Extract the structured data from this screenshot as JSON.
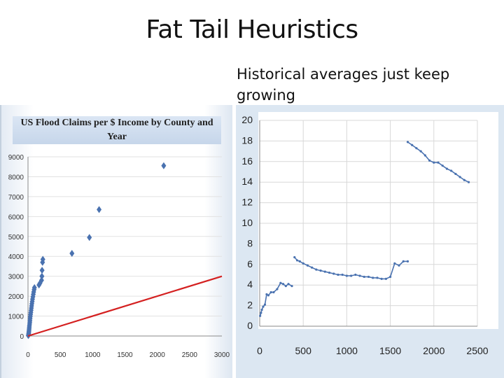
{
  "slide": {
    "title": "Fat Tail Heuristics",
    "subtitle": "Historical averages just keep growing"
  },
  "colors": {
    "marker": "#4a72b0",
    "trend_line": "#d42020",
    "right_panel_bg": "#dce7f2"
  },
  "chart_data": [
    {
      "type": "scatter",
      "title": "US Flood Claims per $ Income by County and Year",
      "xlabel": "",
      "ylabel": "",
      "xlim": [
        0,
        3000
      ],
      "ylim": [
        0,
        9000
      ],
      "xticks": [
        0,
        500,
        1000,
        1500,
        2000,
        2500,
        3000
      ],
      "yticks": [
        0,
        1000,
        2000,
        3000,
        4000,
        5000,
        6000,
        7000,
        8000,
        9000
      ],
      "grid": true,
      "series": [
        {
          "points": [
            [
              5,
              20
            ],
            [
              8,
              60
            ],
            [
              10,
              110
            ],
            [
              12,
              160
            ],
            [
              14,
              220
            ],
            [
              16,
              290
            ],
            [
              18,
              360
            ],
            [
              20,
              440
            ],
            [
              22,
              520
            ],
            [
              25,
              600
            ],
            [
              28,
              690
            ],
            [
              30,
              780
            ],
            [
              33,
              880
            ],
            [
              36,
              980
            ],
            [
              40,
              1080
            ],
            [
              44,
              1180
            ],
            [
              48,
              1290
            ],
            [
              52,
              1400
            ],
            [
              56,
              1510
            ],
            [
              60,
              1620
            ],
            [
              65,
              1730
            ],
            [
              70,
              1850
            ],
            [
              76,
              1970
            ],
            [
              82,
              2090
            ],
            [
              88,
              2210
            ],
            [
              95,
              2330
            ],
            [
              100,
              2430
            ],
            [
              170,
              2560
            ],
            [
              185,
              2650
            ],
            [
              210,
              2800
            ],
            [
              215,
              3000
            ],
            [
              218,
              3300
            ],
            [
              225,
              3700
            ],
            [
              230,
              3850
            ],
            [
              680,
              4150
            ],
            [
              950,
              4950
            ],
            [
              1100,
              6350
            ],
            [
              2100,
              8550
            ]
          ]
        }
      ],
      "trend_line": [
        [
          0,
          0
        ],
        [
          3000,
          3000
        ]
      ]
    },
    {
      "type": "line",
      "xlabel": "",
      "ylabel": "",
      "xlim": [
        0,
        2500
      ],
      "ylim": [
        0,
        20
      ],
      "xticks": [
        0,
        500,
        1000,
        1500,
        2000,
        2500
      ],
      "yticks": [
        0,
        2,
        4,
        6,
        8,
        10,
        12,
        14,
        16,
        18,
        20
      ],
      "grid": true,
      "series": [
        {
          "points": [
            [
              5,
              1.0
            ],
            [
              15,
              1.3
            ],
            [
              25,
              1.6
            ],
            [
              40,
              1.9
            ],
            [
              60,
              2.1
            ],
            [
              80,
              3.1
            ],
            [
              100,
              3.0
            ],
            [
              130,
              3.3
            ],
            [
              160,
              3.3
            ],
            [
              200,
              3.6
            ],
            [
              240,
              4.2
            ],
            [
              270,
              4.1
            ],
            [
              300,
              3.9
            ],
            [
              330,
              4.1
            ],
            [
              370,
              3.9
            ],
            [
              400,
              6.7
            ],
            [
              430,
              6.4
            ],
            [
              460,
              6.3
            ],
            [
              500,
              6.1
            ],
            [
              550,
              5.9
            ],
            [
              600,
              5.7
            ],
            [
              650,
              5.5
            ],
            [
              700,
              5.4
            ],
            [
              750,
              5.3
            ],
            [
              800,
              5.2
            ],
            [
              850,
              5.1
            ],
            [
              900,
              5.0
            ],
            [
              950,
              5.0
            ],
            [
              1000,
              4.9
            ],
            [
              1050,
              4.9
            ],
            [
              1100,
              5.0
            ],
            [
              1150,
              4.9
            ],
            [
              1200,
              4.8
            ],
            [
              1250,
              4.8
            ],
            [
              1300,
              4.7
            ],
            [
              1350,
              4.7
            ],
            [
              1400,
              4.6
            ],
            [
              1450,
              4.6
            ],
            [
              1500,
              4.8
            ],
            [
              1550,
              6.1
            ],
            [
              1600,
              5.9
            ],
            [
              1650,
              6.3
            ],
            [
              1700,
              6.3
            ],
            [
              1700,
              17.9
            ],
            [
              1750,
              17.6
            ],
            [
              1800,
              17.3
            ],
            [
              1850,
              17.0
            ],
            [
              1900,
              16.6
            ],
            [
              1950,
              16.1
            ],
            [
              2000,
              15.9
            ],
            [
              2050,
              15.9
            ],
            [
              2100,
              15.6
            ],
            [
              2150,
              15.3
            ],
            [
              2200,
              15.1
            ],
            [
              2250,
              14.8
            ],
            [
              2300,
              14.5
            ],
            [
              2350,
              14.2
            ],
            [
              2400,
              14.0
            ]
          ]
        }
      ]
    }
  ]
}
